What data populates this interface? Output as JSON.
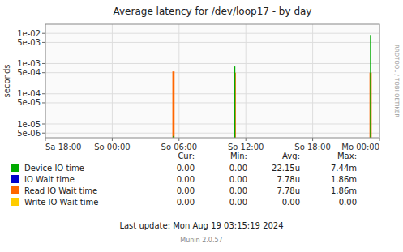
{
  "chart_data": {
    "type": "stem",
    "title": "Average latency for /dev/loop17 - by day",
    "y_label": "seconds",
    "log": "y",
    "grid": true,
    "x": [
      11.5,
      17.0,
      29.2
    ],
    "xlim": [
      0,
      30
    ],
    "xticks": [
      {
        "value": 0,
        "label": "Sa 18:00"
      },
      {
        "value": 6,
        "label": "So 00:00"
      },
      {
        "value": 12,
        "label": "So 06:00"
      },
      {
        "value": 18,
        "label": "So 12:00"
      },
      {
        "value": 24,
        "label": "So 18:00"
      },
      {
        "value": 30,
        "label": "Mo 00:00"
      }
    ],
    "ylim": [
      3.5e-06,
      0.02
    ],
    "yticks": [
      {
        "value": 5e-06,
        "label": "5e-06"
      },
      {
        "value": 1e-05,
        "label": "1e-05"
      },
      {
        "value": 5e-05,
        "label": "5e-05"
      },
      {
        "value": 0.0001,
        "label": "1e-04"
      },
      {
        "value": 0.0005,
        "label": "5e-04"
      },
      {
        "value": 0.001,
        "label": "1e-03"
      },
      {
        "value": 0.005,
        "label": "5e-03"
      },
      {
        "value": 0.01,
        "label": "1e-02"
      }
    ],
    "table_header": [
      "Cur:",
      "Min:",
      "Avg:",
      "Max:"
    ],
    "series": [
      {
        "name": "Device IO time",
        "color": "#00aa00",
        "values": [
          4e-06,
          0.0008,
          0.0088
        ],
        "summary": [
          "0.00",
          "0.00",
          "22.15u",
          "7.44m"
        ]
      },
      {
        "name": "IO Wait time",
        "color": "#0000cc",
        "values": [
          null,
          null,
          null
        ],
        "summary": [
          "0.00",
          "0.00",
          "7.78u",
          "1.86m"
        ]
      },
      {
        "name": "Read IO Wait time",
        "color": "#ff6600",
        "values": [
          0.00055,
          0.0005,
          0.0005
        ],
        "summary": [
          "0.00",
          "0.00",
          "7.78u",
          "1.86m"
        ]
      },
      {
        "name": "Write IO Wait time",
        "color": "#ffcc00",
        "values": [
          null,
          null,
          null
        ],
        "summary": [
          "0.00",
          "0.00",
          "0.00",
          "0.00"
        ]
      }
    ],
    "annotations": [
      "RRDTOOL / TOBI OETIKER",
      "Last update: Mon Aug 19 03:15:19 2024",
      "Munin 2.0.57"
    ]
  }
}
